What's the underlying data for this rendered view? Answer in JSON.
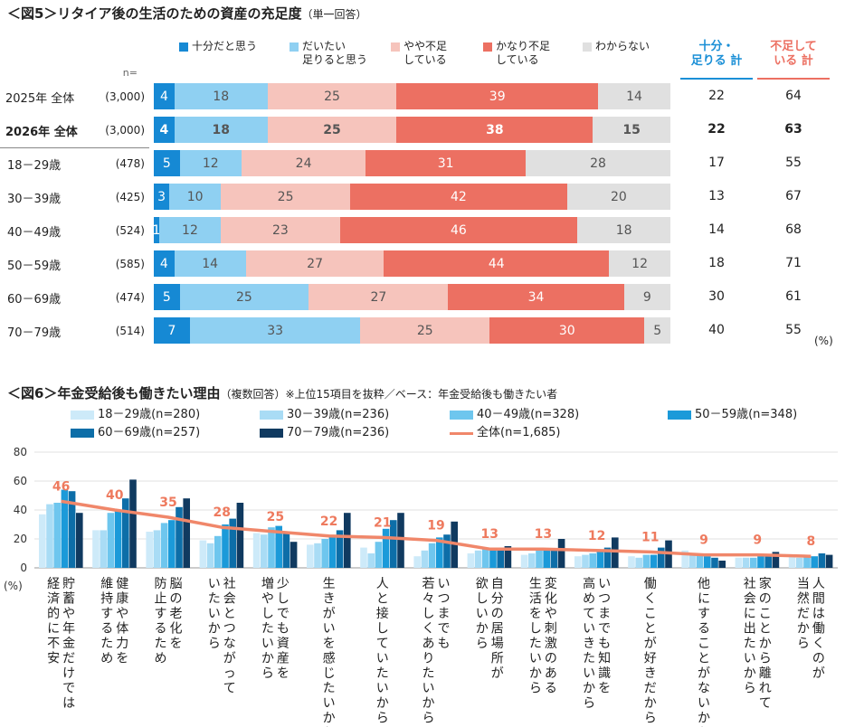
{
  "fig5": {
    "title": "＜図5＞リタイア後の生活のための資産の充足度",
    "subtitle": "（単一回答）",
    "n_label": "n=",
    "legend": [
      {
        "label": "十分だと思う",
        "color": "#1689d4"
      },
      {
        "label": "だいたい\n足りると思う",
        "color": "#8fd0f2"
      },
      {
        "label": "やや不足\nしている",
        "color": "#f6c4bc"
      },
      {
        "label": "かなり不足\nしている",
        "color": "#ec7062"
      },
      {
        "label": "わからない",
        "color": "#e0e0e0"
      }
    ],
    "col_headers": {
      "enough": "十分・\n足りる 計",
      "short": "不足して\nいる 計"
    },
    "unit": "(%)",
    "rows": [
      {
        "label": "2025年 全体",
        "n": "(3,000)",
        "values": [
          4,
          18,
          25,
          39,
          14
        ],
        "enough": "22",
        "short": "64",
        "bold": false
      },
      {
        "label": "2026年 全体",
        "n": "(3,000)",
        "values": [
          4,
          18,
          25,
          38,
          15
        ],
        "enough": "22",
        "short": "63",
        "bold": true
      },
      {
        "label": "18－29歳",
        "n": "(478)",
        "values": [
          5,
          12,
          24,
          31,
          28
        ],
        "enough": "17",
        "short": "55",
        "bold": false
      },
      {
        "label": "30－39歳",
        "n": "(425)",
        "values": [
          3,
          10,
          25,
          42,
          20
        ],
        "enough": "13",
        "short": "67",
        "bold": false
      },
      {
        "label": "40－49歳",
        "n": "(524)",
        "values": [
          1,
          12,
          23,
          46,
          18
        ],
        "enough": "14",
        "short": "68",
        "bold": false
      },
      {
        "label": "50－59歳",
        "n": "(585)",
        "values": [
          4,
          14,
          27,
          44,
          12
        ],
        "enough": "18",
        "short": "71",
        "bold": false
      },
      {
        "label": "60－69歳",
        "n": "(474)",
        "values": [
          5,
          25,
          27,
          34,
          9
        ],
        "enough": "30",
        "short": "61",
        "bold": false
      },
      {
        "label": "70－79歳",
        "n": "(514)",
        "values": [
          7,
          33,
          25,
          30,
          5
        ],
        "enough": "40",
        "short": "55",
        "bold": false
      }
    ]
  },
  "fig6": {
    "title": "＜図6＞年金受給後も働きたい理由",
    "subtitle": "（複数回答）※上位15項目を抜粋／ベース：年金受給後も働きたい者",
    "unit": "(%)"
  },
  "chart_data": {
    "type": "bar",
    "title": "年金受給後も働きたい理由",
    "ylabel": "(%)",
    "ylim": [
      0,
      80
    ],
    "yticks": [
      0,
      20,
      40,
      60,
      80
    ],
    "categories": [
      "貯蓄や年金だけでは経済的に不安",
      "健康や体力を維持するため",
      "脳の老化を防止するため",
      "社会とつながっていたいから",
      "少しでも資産を増やしたいから",
      "生きがいを感じたいから",
      "人と接していたいから",
      "いつまでも若々しくありたいから",
      "自分の居場所が欲しいから",
      "変化や刺激のある生活をしたいから",
      "いつまでも知識を高めていきたいから",
      "働くことが好きだから",
      "他にすることがないから",
      "家のことから離れて社会に出たいから",
      "人間は働くのが当然だから"
    ],
    "series": [
      {
        "name": "18－29歳(n=280)",
        "color": "#cdeaf9",
        "values": [
          37,
          26,
          25,
          19,
          24,
          16,
          14,
          8,
          10,
          9,
          8,
          8,
          12,
          7,
          8
        ]
      },
      {
        "name": "30－39歳(n=236)",
        "color": "#a9dcf5",
        "values": [
          44,
          26,
          26,
          17,
          23,
          17,
          10,
          12,
          12,
          10,
          9,
          7,
          10,
          7,
          7
        ]
      },
      {
        "name": "40－49歳(n=328)",
        "color": "#6ec6ee",
        "values": [
          45,
          38,
          31,
          22,
          28,
          20,
          18,
          17,
          13,
          14,
          10,
          9,
          9,
          7,
          9
        ]
      },
      {
        "name": "50－59歳(n=348)",
        "color": "#1b9ad9",
        "values": [
          54,
          40,
          33,
          30,
          29,
          22,
          27,
          21,
          14,
          13,
          11,
          9,
          8,
          8,
          8
        ]
      },
      {
        "name": "60－69歳(n=257)",
        "color": "#0d6ea8",
        "values": [
          53,
          48,
          42,
          34,
          25,
          26,
          33,
          23,
          13,
          13,
          14,
          14,
          7,
          9,
          10
        ]
      },
      {
        "name": "70－79歳(n=236)",
        "color": "#103a60",
        "values": [
          38,
          61,
          48,
          45,
          18,
          38,
          38,
          32,
          15,
          20,
          21,
          19,
          5,
          11,
          9
        ]
      },
      {
        "name": "全体(n=1,685)",
        "color": "#f0876a",
        "type": "line",
        "values": [
          46,
          40,
          35,
          28,
          25,
          22,
          21,
          19,
          13,
          13,
          12,
          11,
          9,
          9,
          8
        ]
      }
    ],
    "category_labels": [
      [
        "貯蓄や年金だけでは",
        "経済的に不安"
      ],
      [
        "健康や体力を",
        "維持するため"
      ],
      [
        "脳の老化を",
        "防止するため"
      ],
      [
        "社会とつながって",
        "いたいから"
      ],
      [
        "少しでも資産を",
        "増やしたいから"
      ],
      [
        "生きがいを感じたいから"
      ],
      [
        "人と接していたいから"
      ],
      [
        "いつまでも",
        "若々しくありたいから"
      ],
      [
        "自分の居場所が",
        "欲しいから"
      ],
      [
        "変化や刺激のある",
        "生活をしたいから"
      ],
      [
        "いつまでも知識を",
        "高めていきたいから"
      ],
      [
        "働くことが好きだから"
      ],
      [
        "他にすることがないから"
      ],
      [
        "家のことから離れて",
        "社会に出たいから"
      ],
      [
        "人間は働くのが",
        "当然だから"
      ]
    ]
  }
}
